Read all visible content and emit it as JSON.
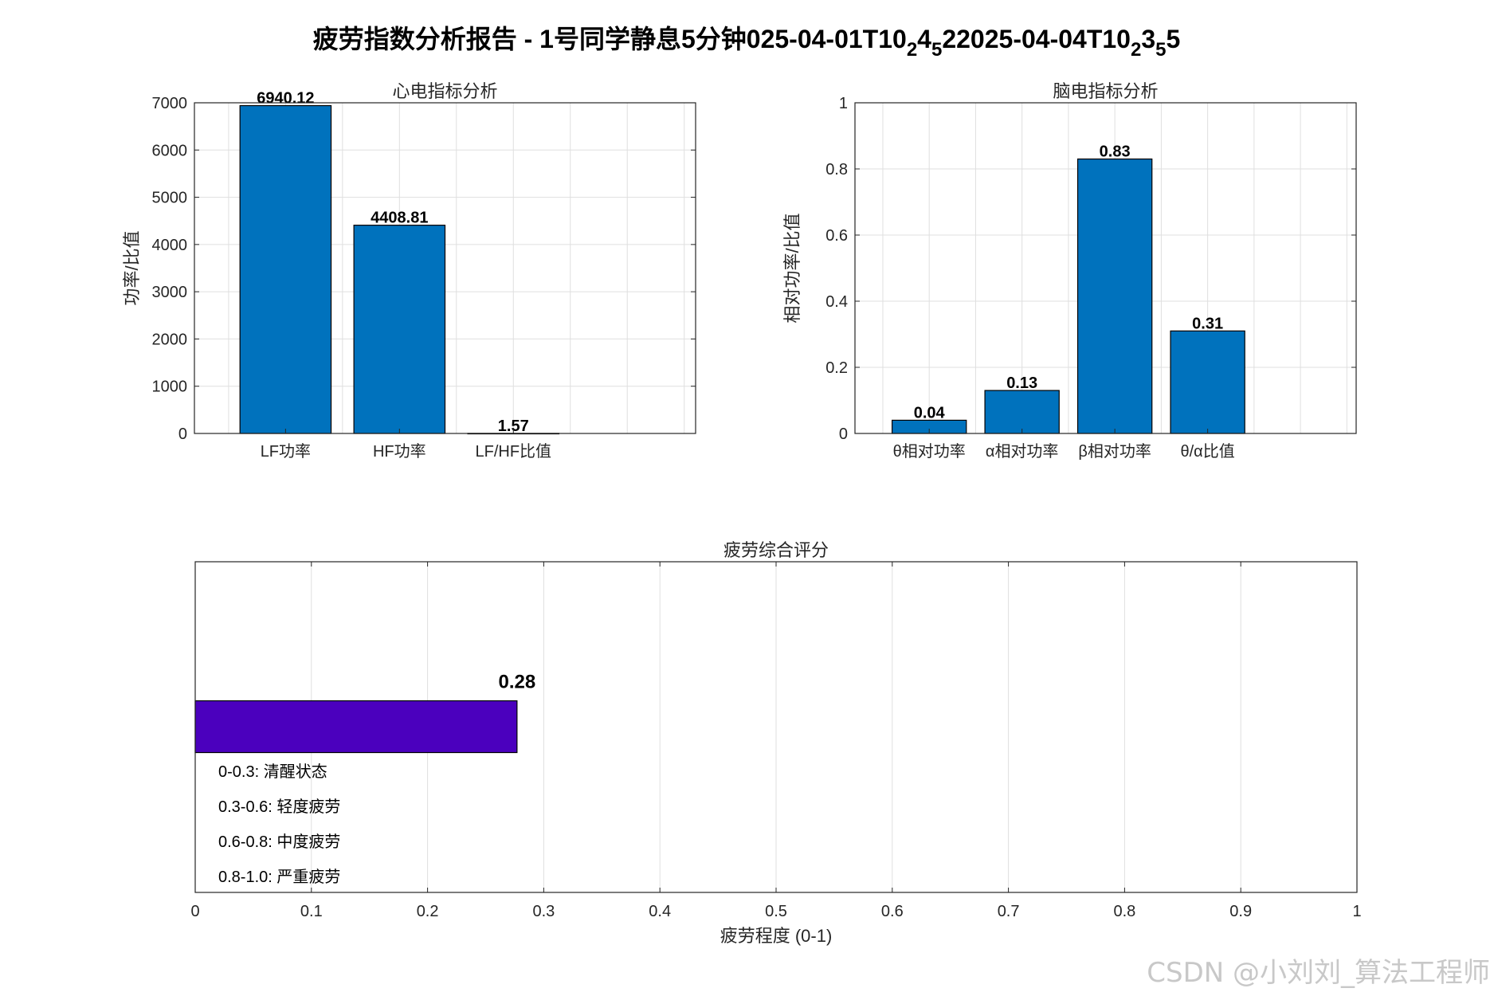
{
  "figure": {
    "title_parts": [
      {
        "text": "疲劳指数分析报告 - 1号同学静息5分钟025-04-01T10",
        "sub": false
      },
      {
        "text": "2",
        "sub": true
      },
      {
        "text": "4",
        "sub": false
      },
      {
        "text": "5",
        "sub": true
      },
      {
        "text": "22025-04-04T10",
        "sub": false
      },
      {
        "text": "2",
        "sub": true
      },
      {
        "text": "3",
        "sub": false
      },
      {
        "text": "5",
        "sub": true
      },
      {
        "text": "5",
        "sub": false
      }
    ],
    "watermark": "CSDN @小刘刘_算法工程师"
  },
  "chart_data": [
    {
      "type": "bar",
      "title": "心电指标分析",
      "xlabel": "",
      "ylabel": "功率/比值",
      "categories": [
        "LF功率",
        "HF功率",
        "LF/HF比值"
      ],
      "values": [
        6940.12,
        4408.81,
        1.57
      ],
      "value_labels": [
        "6940.12",
        "4408.81",
        "1.57"
      ],
      "ylim": [
        0,
        7000
      ],
      "yticks": [
        0,
        1000,
        2000,
        3000,
        4000,
        5000,
        6000,
        7000
      ],
      "xlim": [
        0.2,
        4.6
      ],
      "grid": true,
      "bar_color": "#0072BD"
    },
    {
      "type": "bar",
      "title": "脑电指标分析",
      "xlabel": "",
      "ylabel": "相对功率/比值",
      "categories": [
        "θ相对功率",
        "α相对功率",
        "β相对功率",
        "θ/α比值"
      ],
      "values": [
        0.04,
        0.13,
        0.83,
        0.31
      ],
      "value_labels": [
        "0.04",
        "0.13",
        "0.83",
        "0.31"
      ],
      "ylim": [
        0,
        1
      ],
      "yticks": [
        0,
        0.2,
        0.4,
        0.6,
        0.8,
        1
      ],
      "xlim": [
        0.2,
        5.6
      ],
      "grid": true,
      "bar_color": "#0072BD"
    },
    {
      "type": "bar",
      "orientation": "horizontal",
      "title": "疲劳综合评分",
      "xlabel": "疲劳程度 (0-1)",
      "ylabel": "",
      "categories": [
        ""
      ],
      "values": [
        0.277
      ],
      "value_labels": [
        "0.28"
      ],
      "xlim": [
        0,
        1
      ],
      "xticks": [
        0,
        0.1,
        0.2,
        0.3,
        0.4,
        0.5,
        0.6,
        0.7,
        0.8,
        0.9,
        1
      ],
      "grid": true,
      "bar_color": "#4B00BE",
      "annotations": [
        "0-0.3: 清醒状态",
        "0.3-0.6: 轻度疲劳",
        "0.6-0.8: 中度疲劳",
        "0.8-1.0: 严重疲劳"
      ]
    }
  ]
}
